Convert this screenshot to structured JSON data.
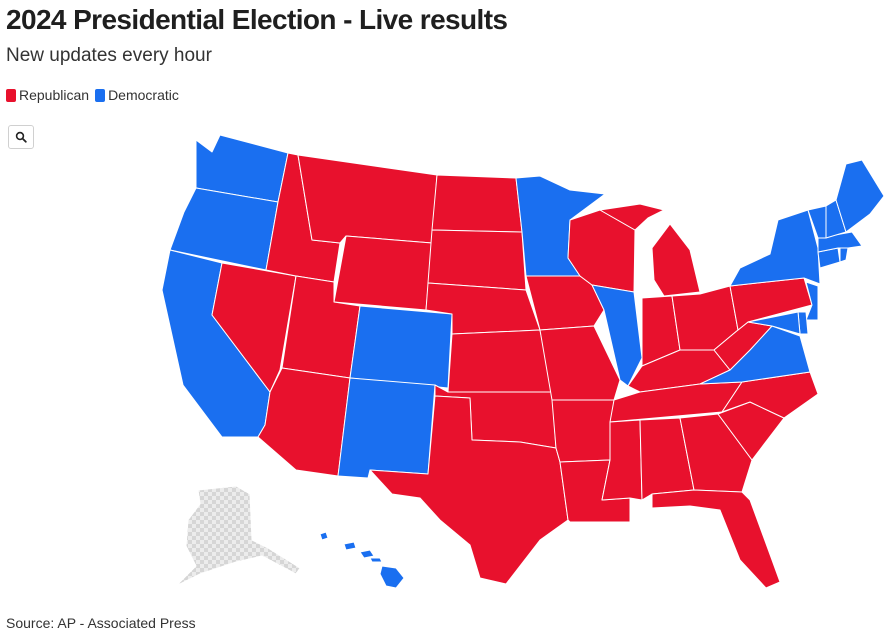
{
  "header": {
    "title": "2024 Presidential Election - Live results",
    "subtitle": "New updates every hour"
  },
  "legend": [
    {
      "label": "Republican",
      "color": "#e8112d"
    },
    {
      "label": "Democratic",
      "color": "#1a6ff0"
    }
  ],
  "toolbar": {
    "zoom_icon": "search-icon"
  },
  "map": {
    "colors": {
      "Republican": "#e8112d",
      "Democratic": "#1a6ff0",
      "no_data": "#d9d9d9"
    },
    "states": [
      {
        "name": "Washington",
        "winner": "Democratic"
      },
      {
        "name": "Oregon",
        "winner": "Democratic"
      },
      {
        "name": "California",
        "winner": "Democratic"
      },
      {
        "name": "Nevada",
        "winner": "Republican"
      },
      {
        "name": "Idaho",
        "winner": "Republican"
      },
      {
        "name": "Montana",
        "winner": "Republican"
      },
      {
        "name": "Wyoming",
        "winner": "Republican"
      },
      {
        "name": "Utah",
        "winner": "Republican"
      },
      {
        "name": "Arizona",
        "winner": "Republican"
      },
      {
        "name": "Colorado",
        "winner": "Democratic"
      },
      {
        "name": "New Mexico",
        "winner": "Democratic"
      },
      {
        "name": "North Dakota",
        "winner": "Republican"
      },
      {
        "name": "South Dakota",
        "winner": "Republican"
      },
      {
        "name": "Nebraska",
        "winner": "Republican"
      },
      {
        "name": "Kansas",
        "winner": "Republican"
      },
      {
        "name": "Oklahoma",
        "winner": "Republican"
      },
      {
        "name": "Texas",
        "winner": "Republican"
      },
      {
        "name": "Minnesota",
        "winner": "Democratic"
      },
      {
        "name": "Iowa",
        "winner": "Republican"
      },
      {
        "name": "Missouri",
        "winner": "Republican"
      },
      {
        "name": "Arkansas",
        "winner": "Republican"
      },
      {
        "name": "Louisiana",
        "winner": "Republican"
      },
      {
        "name": "Wisconsin",
        "winner": "Republican"
      },
      {
        "name": "Illinois",
        "winner": "Democratic"
      },
      {
        "name": "Michigan",
        "winner": "Republican"
      },
      {
        "name": "Indiana",
        "winner": "Republican"
      },
      {
        "name": "Ohio",
        "winner": "Republican"
      },
      {
        "name": "Kentucky",
        "winner": "Republican"
      },
      {
        "name": "Tennessee",
        "winner": "Republican"
      },
      {
        "name": "Mississippi",
        "winner": "Republican"
      },
      {
        "name": "Alabama",
        "winner": "Republican"
      },
      {
        "name": "Georgia",
        "winner": "Republican"
      },
      {
        "name": "Florida",
        "winner": "Republican"
      },
      {
        "name": "South Carolina",
        "winner": "Republican"
      },
      {
        "name": "North Carolina",
        "winner": "Republican"
      },
      {
        "name": "Virginia",
        "winner": "Democratic"
      },
      {
        "name": "West Virginia",
        "winner": "Republican"
      },
      {
        "name": "Pennsylvania",
        "winner": "Republican"
      },
      {
        "name": "New York",
        "winner": "Democratic"
      },
      {
        "name": "New Jersey",
        "winner": "Democratic"
      },
      {
        "name": "Delaware",
        "winner": "Democratic"
      },
      {
        "name": "Maryland",
        "winner": "Democratic"
      },
      {
        "name": "Connecticut",
        "winner": "Democratic"
      },
      {
        "name": "Rhode Island",
        "winner": "Democratic"
      },
      {
        "name": "Massachusetts",
        "winner": "Democratic"
      },
      {
        "name": "Vermont",
        "winner": "Democratic"
      },
      {
        "name": "New Hampshire",
        "winner": "Democratic"
      },
      {
        "name": "Maine",
        "winner": "Democratic"
      },
      {
        "name": "Hawaii",
        "winner": "Democratic"
      },
      {
        "name": "Alaska",
        "winner": "none"
      }
    ]
  },
  "footer": {
    "source": "Source: AP - Associated Press"
  }
}
